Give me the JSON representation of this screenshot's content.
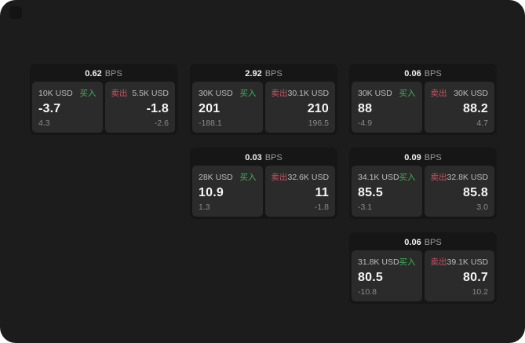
{
  "app": {
    "background": "#1c1c1c"
  },
  "colors": {
    "buy_green": "#43b05c",
    "sell_red": "#ca5263"
  },
  "labels": {
    "bps_unit": "BPS",
    "buy": "买入",
    "sell": "卖出"
  },
  "cards": [
    {
      "bps": "0.62",
      "buy": {
        "amount": "10K USD",
        "value": "-3.7",
        "sub": "4.3"
      },
      "sell": {
        "amount": "5.5K USD",
        "value": "-1.8",
        "sub": "-2.6"
      }
    },
    {
      "bps": "2.92",
      "buy": {
        "amount": "30K USD",
        "value": "201",
        "sub": "-188.1"
      },
      "sell": {
        "amount": "30.1K USD",
        "value": "210",
        "sub": "196.5"
      }
    },
    {
      "bps": "0.06",
      "buy": {
        "amount": "30K USD",
        "value": "88",
        "sub": "-4.9"
      },
      "sell": {
        "amount": "30K USD",
        "value": "88.2",
        "sub": "4.7"
      }
    },
    {
      "bps": "0.03",
      "buy": {
        "amount": "28K USD",
        "value": "10.9",
        "sub": "1.3"
      },
      "sell": {
        "amount": "32.6K USD",
        "value": "11",
        "sub": "-1.8"
      }
    },
    {
      "bps": "0.09",
      "buy": {
        "amount": "34.1K USD",
        "value": "85.5",
        "sub": "-3.1"
      },
      "sell": {
        "amount": "32.8K USD",
        "value": "85.8",
        "sub": "3.0"
      }
    },
    {
      "bps": "0.06",
      "buy": {
        "amount": "31.8K USD",
        "value": "80.5",
        "sub": "-10.8"
      },
      "sell": {
        "amount": "39.1K USD",
        "value": "80.7",
        "sub": "10.2"
      }
    }
  ]
}
